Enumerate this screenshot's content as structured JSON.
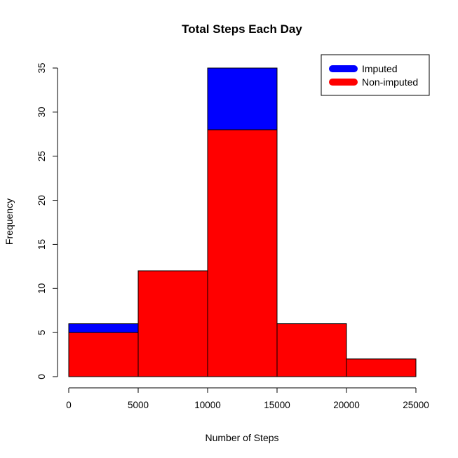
{
  "chart_data": {
    "type": "bar",
    "title": "Total Steps Each Day",
    "xlabel": "Number of Steps",
    "ylabel": "Frequency",
    "bins": [
      [
        0,
        5000
      ],
      [
        5000,
        10000
      ],
      [
        10000,
        15000
      ],
      [
        15000,
        20000
      ],
      [
        20000,
        25000
      ]
    ],
    "xlim": [
      0,
      25000
    ],
    "ylim": [
      0,
      35
    ],
    "x_ticks": [
      "0",
      "5000",
      "10000",
      "15000",
      "20000",
      "25000"
    ],
    "y_ticks": [
      "0",
      "5",
      "10",
      "15",
      "20",
      "25",
      "30",
      "35"
    ],
    "series": [
      {
        "name": "Imputed",
        "color": "#0000FF",
        "values": [
          6,
          12,
          35,
          6,
          2
        ]
      },
      {
        "name": "Non-imputed",
        "color": "#FF0000",
        "values": [
          5,
          12,
          28,
          6,
          2
        ]
      }
    ],
    "legend_position": "top-right",
    "grid": false
  }
}
